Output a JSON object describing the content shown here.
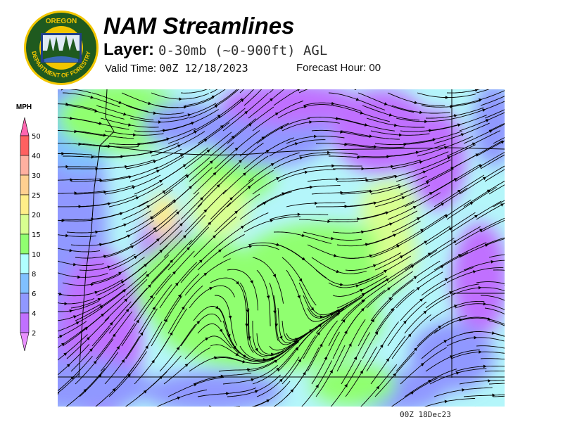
{
  "header": {
    "title": "NAM Streamlines",
    "layer_label": "Layer:",
    "layer_value": "0-30mb (~0-900ft) AGL",
    "valid_label": "Valid Time:",
    "valid_value": "00Z 12/18/2023",
    "forecast_label": "Forecast Hour:",
    "forecast_value": "00"
  },
  "logo": {
    "text_top": "OREGON",
    "text_bottom": "DEPARTMENT OF FORESTRY"
  },
  "legend": {
    "unit": "MPH",
    "bins": [
      {
        "label": "50",
        "color": "#ff66b0"
      },
      {
        "label": "40",
        "color": "#ff6060"
      },
      {
        "label": "30",
        "color": "#ffb0a0"
      },
      {
        "label": "25",
        "color": "#ffd090"
      },
      {
        "label": "20",
        "color": "#ffee88"
      },
      {
        "label": "15",
        "color": "#d8ff90"
      },
      {
        "label": "10",
        "color": "#90ff70"
      },
      {
        "label": "8",
        "color": "#b0ffff"
      },
      {
        "label": "6",
        "color": "#80c0ff"
      },
      {
        "label": "4",
        "color": "#9098ff"
      },
      {
        "label": "2",
        "color": "#c070ff"
      }
    ],
    "below_color": "#e890ff"
  },
  "map": {
    "timestamp": "00Z 18Dec23"
  }
}
